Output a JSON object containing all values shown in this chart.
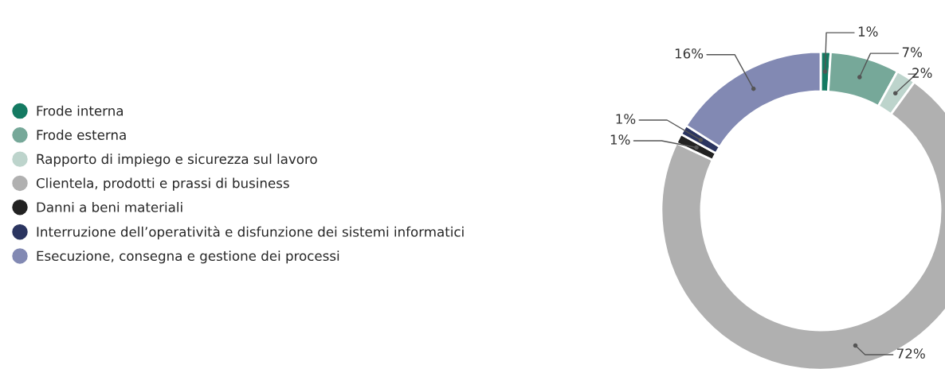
{
  "chart_data": {
    "type": "donut",
    "categories": [
      "Frode interna",
      "Frode esterna",
      "Rapporto di impiego e sicurezza sul lavoro",
      "Clientela, prodotti e prassi di business",
      "Danni a beni materiali",
      "Interruzione dell’operatività e disfunzione dei sistemi informatici",
      "Esecuzione, consegna e gestione dei processi"
    ],
    "values": [
      1,
      7,
      2,
      72,
      1,
      1,
      16
    ],
    "colors": [
      "#147a62",
      "#76a899",
      "#bdd4cc",
      "#b0b0b0",
      "#222222",
      "#2b3560",
      "#8289b3"
    ],
    "value_labels": [
      "1%",
      "7%",
      "2%",
      "72%",
      "1%",
      "1%",
      "16%"
    ],
    "legend": "left"
  }
}
